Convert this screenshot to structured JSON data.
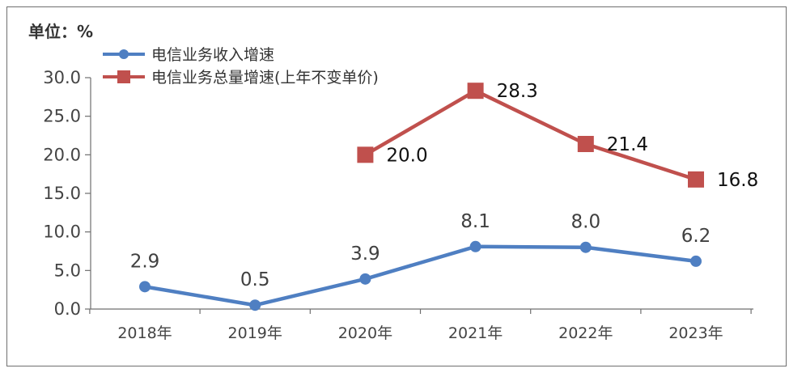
{
  "chart_data": {
    "type": "line",
    "unit_label": "单位：%",
    "categories": [
      "2018年",
      "2019年",
      "2020年",
      "2021年",
      "2022年",
      "2023年"
    ],
    "ylim": [
      0,
      30
    ],
    "yticks": [
      "0.0",
      "5.0",
      "10.0",
      "15.0",
      "20.0",
      "25.0",
      "30.0"
    ],
    "grid": false,
    "legend_position": "top-left",
    "series": [
      {
        "name": "电信业务收入增速",
        "color": "#4f7fc2",
        "marker": "circle",
        "values": [
          2.9,
          0.5,
          3.9,
          8.1,
          8.0,
          6.2
        ],
        "labels": [
          "2.9",
          "0.5",
          "3.9",
          "8.1",
          "8.0",
          "6.2"
        ]
      },
      {
        "name": "电信业务总量增速(上年不变单价)",
        "color": "#c0504d",
        "marker": "square",
        "values": [
          null,
          null,
          20.0,
          28.3,
          21.4,
          16.8
        ],
        "labels": [
          "",
          "",
          "20.0",
          "28.3",
          "21.4",
          "16.8"
        ]
      }
    ]
  }
}
